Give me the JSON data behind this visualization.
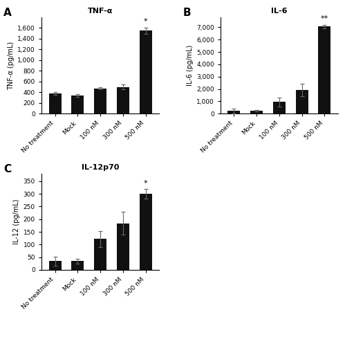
{
  "categories": [
    "No treatment",
    "Mock",
    "100 nM",
    "300 nM",
    "500 nM"
  ],
  "tnf_values": [
    380,
    340,
    475,
    500,
    1550
  ],
  "tnf_errors": [
    30,
    20,
    25,
    45,
    60
  ],
  "tnf_ylabel": "TNF-α (pg/mL)",
  "tnf_title": "TNF-α",
  "tnf_ylim": [
    0,
    1800
  ],
  "tnf_yticks": [
    0,
    200,
    400,
    600,
    800,
    1000,
    1200,
    1400,
    1600
  ],
  "tnf_sig": [
    null,
    null,
    null,
    null,
    "*"
  ],
  "il6_values": [
    230,
    220,
    950,
    1920,
    7050
  ],
  "il6_errors": [
    200,
    60,
    350,
    500,
    120
  ],
  "il6_ylabel": "IL-6 (pg/mL)",
  "il6_title": "IL-6",
  "il6_ylim": [
    0,
    7800
  ],
  "il6_yticks": [
    0,
    1000,
    2000,
    3000,
    4000,
    5000,
    6000,
    7000
  ],
  "il6_sig": [
    null,
    null,
    null,
    null,
    "**"
  ],
  "il12_values": [
    35,
    35,
    122,
    183,
    300
  ],
  "il12_errors": [
    18,
    10,
    32,
    45,
    18
  ],
  "il12_ylabel": "IL-12 (pg/mL)",
  "il12_title": "IL-12p70",
  "il12_ylim": [
    0,
    380
  ],
  "il12_yticks": [
    0,
    50,
    100,
    150,
    200,
    250,
    300,
    350
  ],
  "il12_sig": [
    null,
    null,
    null,
    null,
    "*"
  ],
  "bar_color": "#111111",
  "bar_width": 0.55,
  "background_color": "#ffffff",
  "font_family": "Arial"
}
